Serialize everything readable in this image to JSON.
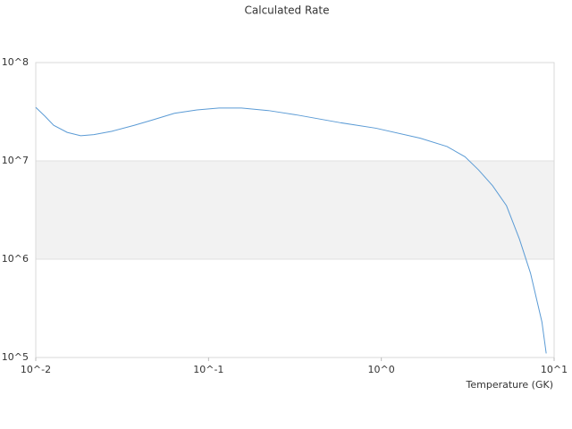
{
  "chart_data": {
    "type": "line",
    "title": "Calculated Rate",
    "x_label": "Temperature (GK)",
    "log_x": true,
    "log_y": true,
    "alternate_bands": true,
    "grid": true,
    "xlim": [
      0.01,
      10
    ],
    "ylim": [
      100000,
      100000000
    ],
    "xticks": [
      {
        "value": 0.01,
        "label": "10^-2"
      },
      {
        "value": 0.1,
        "label": "10^-1"
      },
      {
        "value": 1,
        "label": "10^0"
      },
      {
        "value": 10,
        "label": "10^1"
      }
    ],
    "yticks": [
      {
        "value": 100000,
        "label": "10^5"
      },
      {
        "value": 1000000,
        "label": "10^6"
      },
      {
        "value": 10000000,
        "label": "10^7"
      },
      {
        "value": 100000000,
        "label": "10^8"
      }
    ],
    "series": [
      {
        "color": "#5b9bd5",
        "x": [
          0.01,
          0.0113,
          0.0127,
          0.0152,
          0.0182,
          0.0217,
          0.0276,
          0.0371,
          0.0471,
          0.0635,
          0.0857,
          0.115,
          0.155,
          0.222,
          0.318,
          0.575,
          0.93,
          1.68,
          2.4,
          3.05,
          3.65,
          4.4,
          5.3,
          6.3,
          7.3,
          8.5,
          9.0
        ],
        "values": [
          35000000,
          28500000,
          23000000,
          19500000,
          18000000,
          18500000,
          20000000,
          23000000,
          26000000,
          30500000,
          33000000,
          34500000,
          34500000,
          32500000,
          29500000,
          24500000,
          21500000,
          17000000,
          14000000,
          11000000,
          8100000,
          5600000,
          3500000,
          1600000,
          720000,
          230000,
          110000
        ]
      }
    ]
  }
}
